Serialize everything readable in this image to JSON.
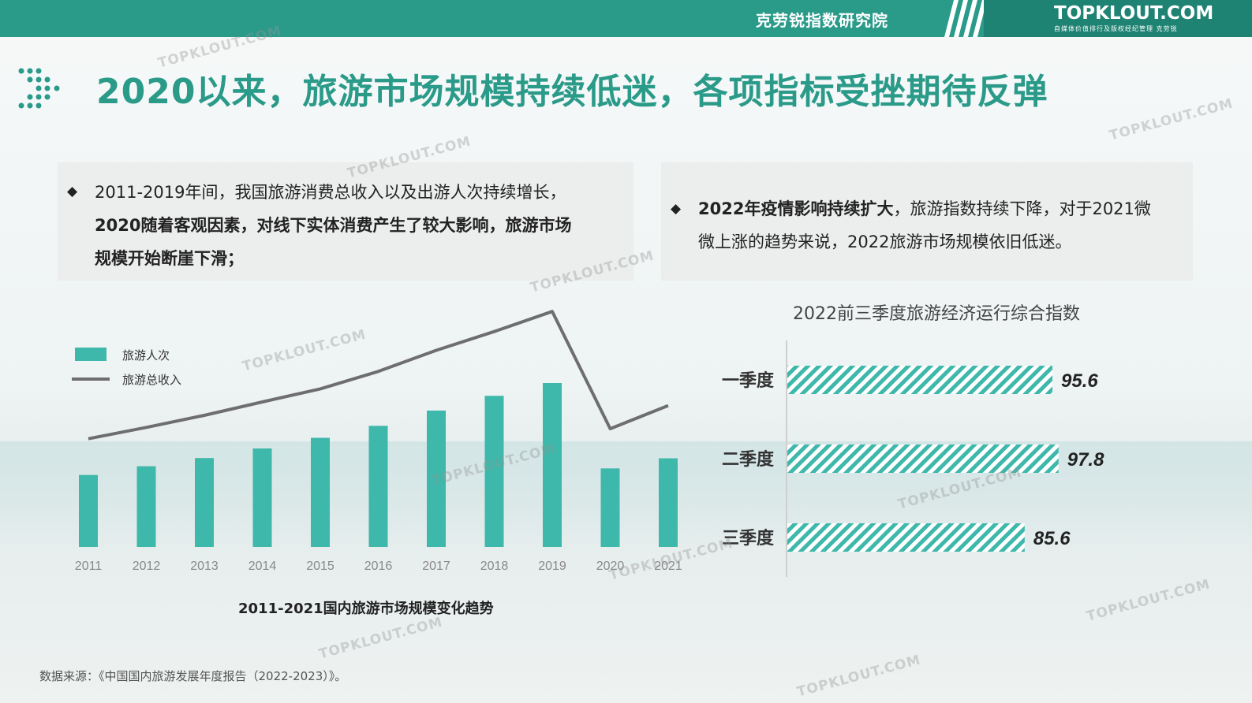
{
  "header": {
    "institute": "克劳锐指数研究院",
    "logo": "TOPKLOUT.COM",
    "logo_sub": "自媒体价值排行及版权经纪管理 克劳锐"
  },
  "title": "2020以来，旅游市场规模持续低迷，各项指标受挫期待反弹",
  "box1": {
    "bullet": "◆",
    "line1": "2011-2019年间，我国旅游消费总收入以及出游人次持续增长，",
    "line2": "2020随着客观因素，对线下实体消费产生了较大影响，旅游市场",
    "line3": "规模开始断崖下滑；"
  },
  "box2": {
    "bullet": "◆",
    "bold": "2022年疫情影响持续扩大",
    "line1_rest": "，旅游指数持续下降，对于2021微",
    "line2": "微上涨的趋势来说，2022旅游市场规模依旧低迷。"
  },
  "chart_data": [
    {
      "type": "bar",
      "title": "2011-2021国内旅游市场规模变化趋势",
      "categories": [
        "2011",
        "2012",
        "2013",
        "2014",
        "2015",
        "2016",
        "2017",
        "2018",
        "2019",
        "2020",
        "2021"
      ],
      "series": [
        {
          "name": "旅游人次",
          "type": "bar",
          "color": "#3db8aa",
          "values": [
            26.4,
            29.6,
            32.6,
            36.1,
            40.0,
            44.4,
            50.0,
            55.4,
            60.1,
            28.8,
            32.5
          ]
        },
        {
          "name": "旅游总收入",
          "type": "line",
          "color": "#6e6e6e",
          "values": [
            1.93,
            2.27,
            2.63,
            3.03,
            3.42,
            3.94,
            4.57,
            5.13,
            5.73,
            2.23,
            2.92
          ]
        }
      ]
    },
    {
      "type": "bar",
      "orientation": "horizontal",
      "title": "2022前三季度旅游经济运行综合指数",
      "categories": [
        "一季度",
        "二季度",
        "三季度"
      ],
      "values": [
        95.6,
        97.8,
        85.6
      ],
      "color": "#3db8aa",
      "pattern": "diagonal-hatch"
    }
  ],
  "legend": {
    "bar": "旅游人次",
    "line": "旅游总收入"
  },
  "source": "数据来源：《中国国内旅游发展年度报告（2022-2023）》。",
  "watermark": "TOPKLOUT.COM"
}
